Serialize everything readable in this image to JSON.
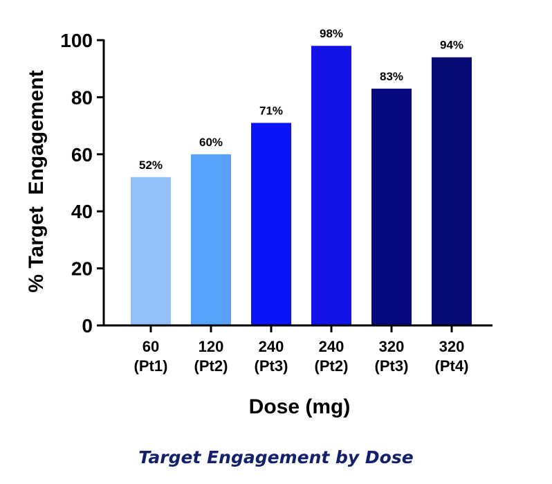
{
  "chart_data": {
    "type": "bar",
    "categories": [
      [
        "60",
        "(Pt1)"
      ],
      [
        "120",
        "(Pt2)"
      ],
      [
        "240",
        "(Pt3)"
      ],
      [
        "240",
        "(Pt2)"
      ],
      [
        "320",
        "(Pt3)"
      ],
      [
        "320",
        "(Pt4)"
      ]
    ],
    "values": [
      52,
      60,
      71,
      98,
      83,
      94
    ],
    "data_labels": [
      "52%",
      "60%",
      "71%",
      "98%",
      "83%",
      "94%"
    ],
    "colors": [
      "#93c0fa",
      "#57a0fb",
      "#0a14f4",
      "#1213e9",
      "#0a0a80",
      "#070c75"
    ],
    "xlabel": "Dose (mg)",
    "ylabel": "% Target  Engagement",
    "ylim": [
      0,
      100
    ],
    "yticks": [
      "0",
      "20",
      "40",
      "60",
      "80",
      "100"
    ],
    "grid": false,
    "legend": "none"
  },
  "caption": "Target Engagement by Dose"
}
